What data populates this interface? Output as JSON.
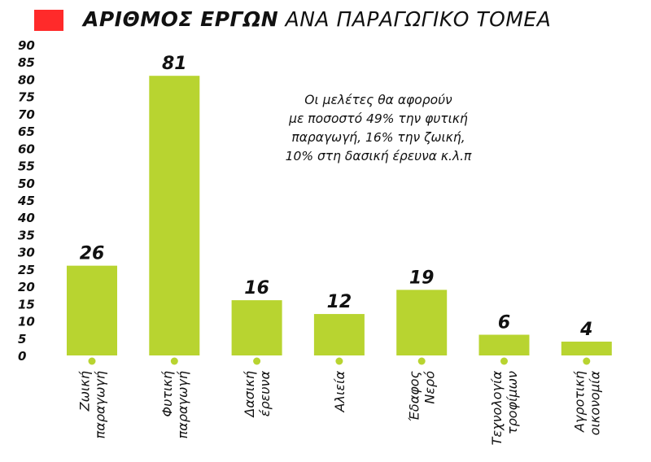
{
  "title": {
    "bold": "ΑΡΙΘΜΟΣ ΕΡΓΩΝ",
    "rest": "ΑΝΑ ΠΑΡΑΓΩΓΙΚΟ ΤΟΜΕΑ"
  },
  "colors": {
    "bar": "#b8d430",
    "title_marker": "#ff2a2a",
    "dot": "#b8d430"
  },
  "note": {
    "lines": [
      "Οι μελέτες θα αφορούν",
      "με ποσοστό 49% την φυτική",
      "παραγωγή, 16% την ζωική,",
      "10% στη δασική έρευνα κ.λ.π"
    ]
  },
  "chart_data": {
    "type": "bar",
    "title": "ΑΡΙΘΜΟΣ ΕΡΓΩΝ ΑΝΑ ΠΑΡΑΓΩΓΙΚΟ ΤΟΜΕΑ",
    "categories": [
      [
        "Ζωική",
        "παραγωγή"
      ],
      [
        "Φυτική",
        "παραγωγή"
      ],
      [
        "Δασική",
        "έρευνα"
      ],
      [
        "Αλιεία"
      ],
      [
        "Έδαφος",
        "Νερό"
      ],
      [
        "Τεχνολογία",
        "τροφίμων"
      ],
      [
        "Αγροτική",
        "οικονομία"
      ]
    ],
    "values": [
      26,
      81,
      16,
      12,
      19,
      6,
      4
    ],
    "ylim": [
      0,
      90
    ],
    "yticks": [
      0,
      5,
      10,
      15,
      20,
      25,
      30,
      35,
      40,
      45,
      50,
      55,
      60,
      65,
      70,
      75,
      80,
      85,
      90
    ],
    "xlabel": "",
    "ylabel": "",
    "grid": false,
    "legend": "none"
  }
}
